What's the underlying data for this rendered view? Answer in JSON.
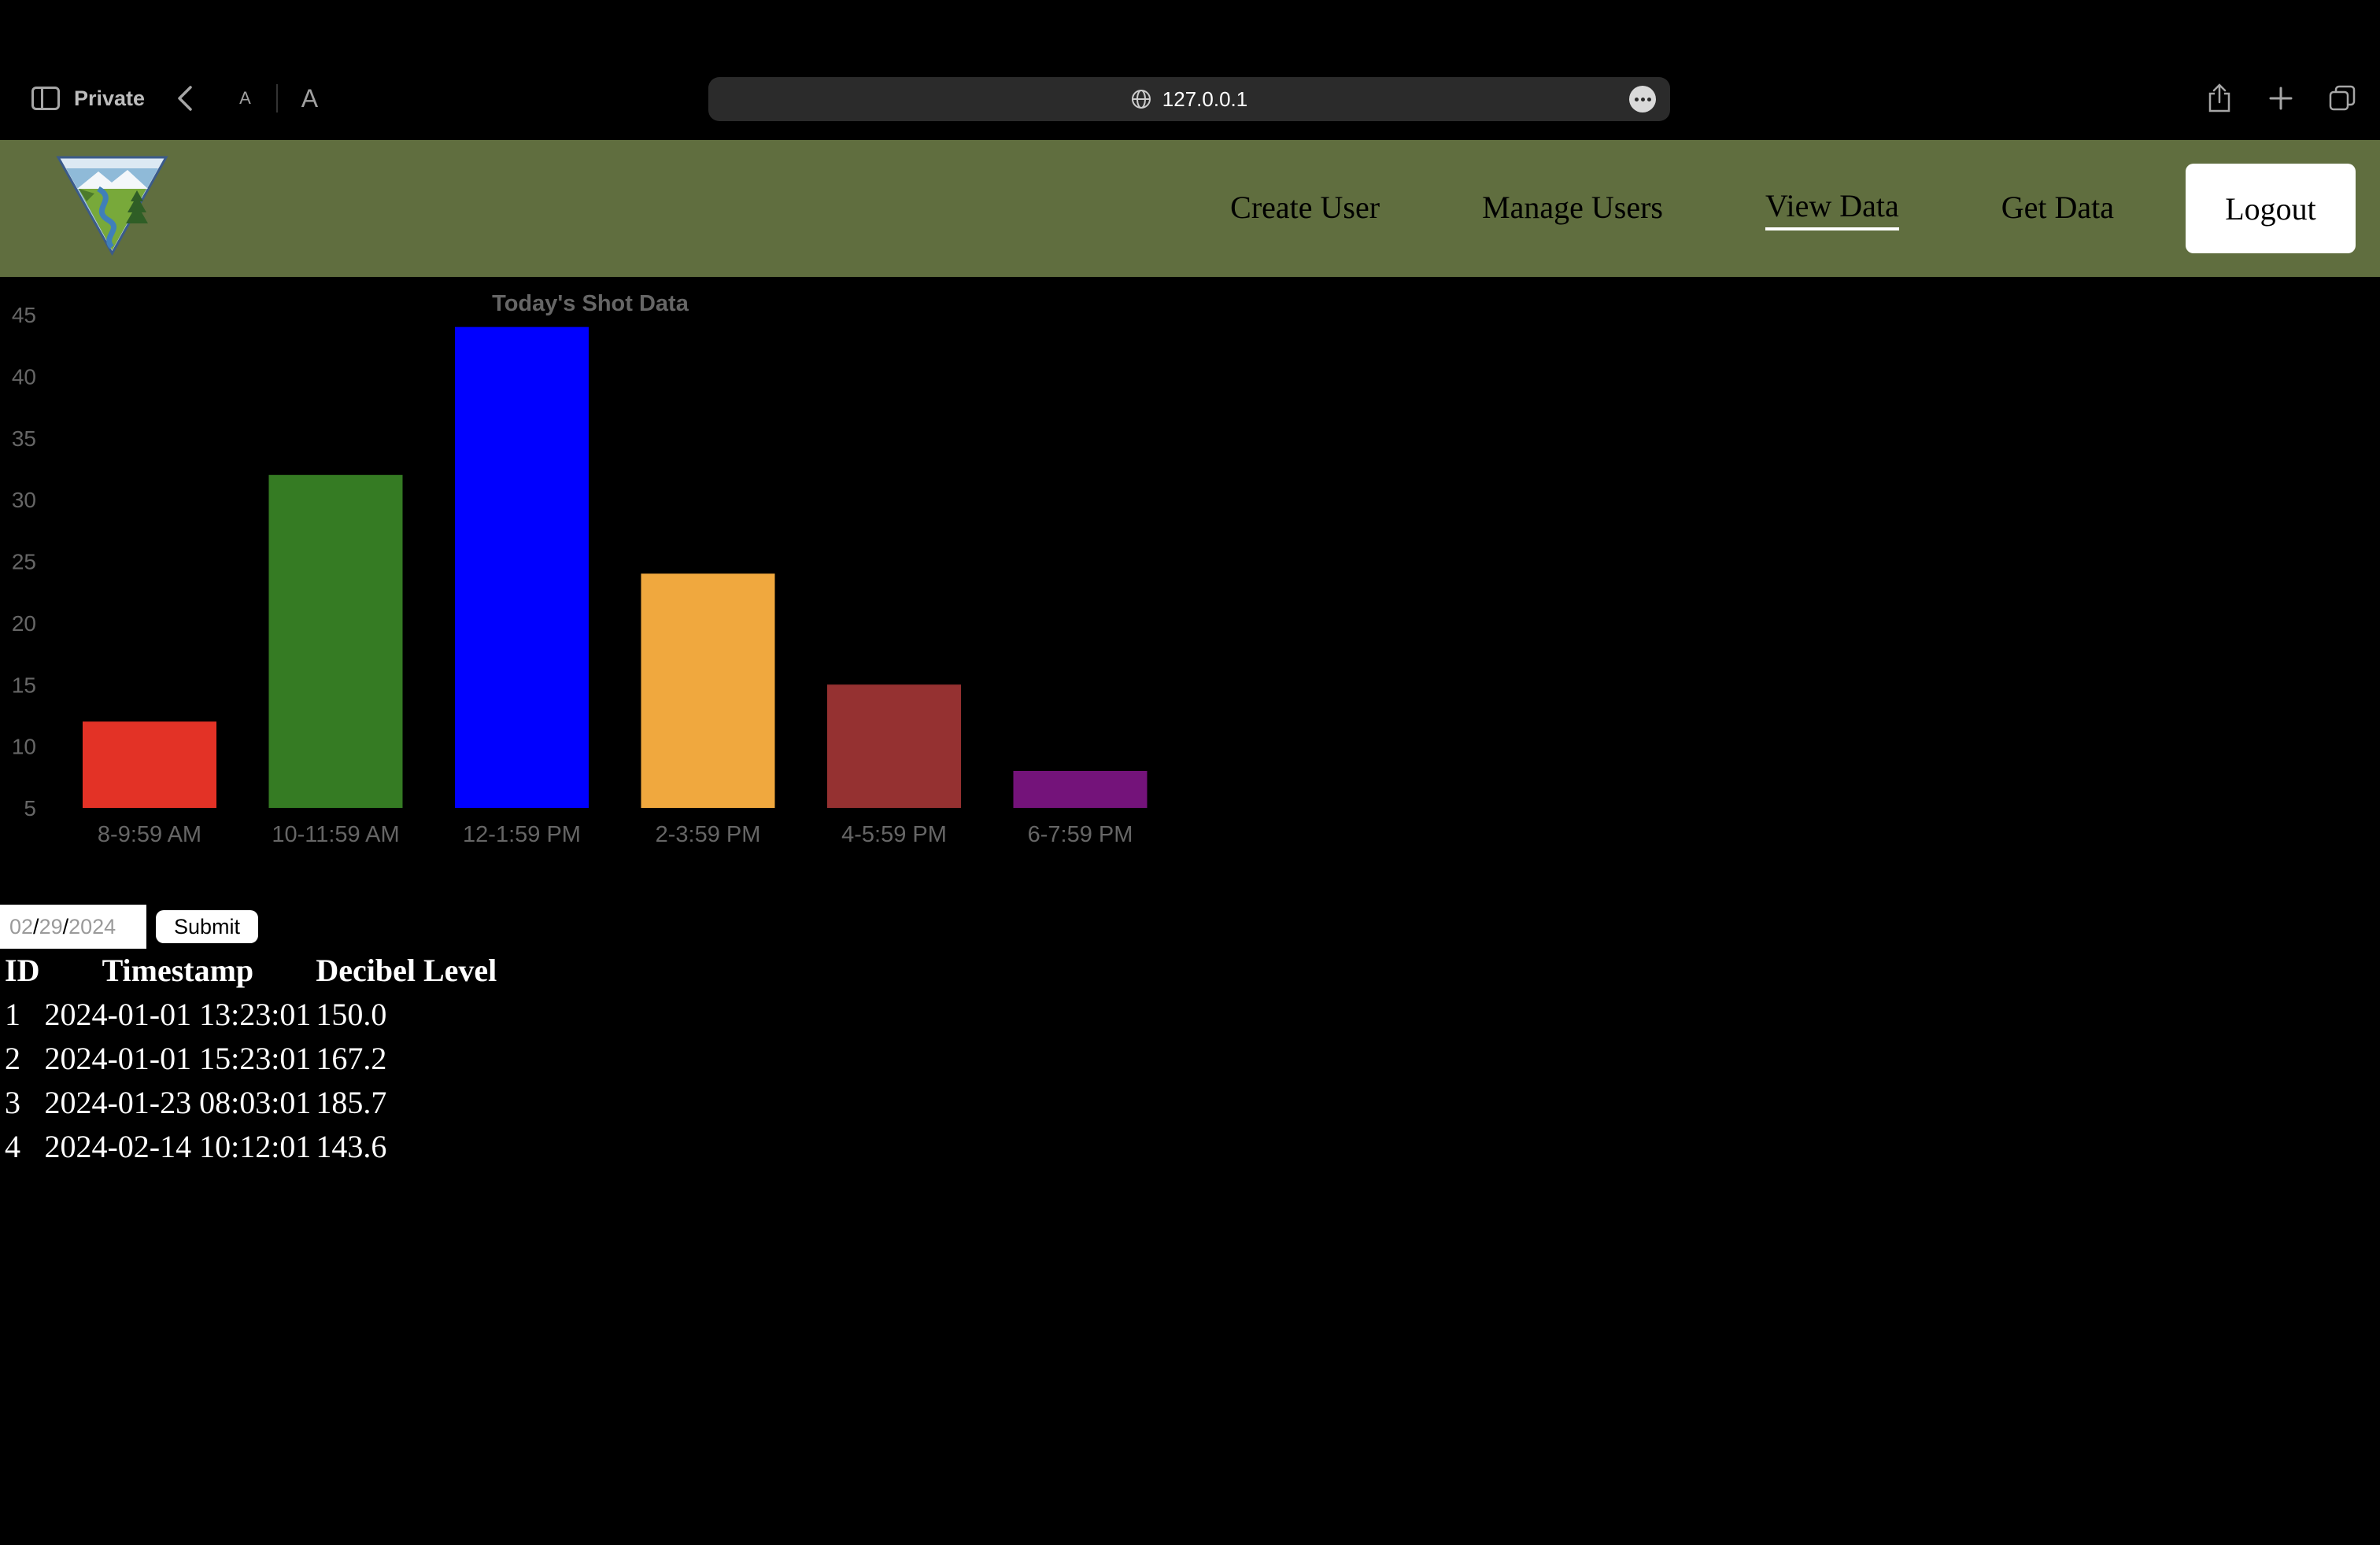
{
  "browser": {
    "mode_label": "Private",
    "text_small": "A",
    "text_large": "A",
    "url": "127.0.0.1"
  },
  "nav": {
    "links": [
      "Create User",
      "Manage Users",
      "View Data",
      "Get Data"
    ],
    "active": "View Data",
    "logout_label": "Logout",
    "logo_icon": "bureau-of-land-management-logo-icon"
  },
  "chart_data": {
    "type": "bar",
    "title": "Today's Shot Data",
    "categories": [
      "8-9:59 AM",
      "10-11:59 AM",
      "12-1:59 PM",
      "2-3:59 PM",
      "4-5:59 PM",
      "6-7:59 PM"
    ],
    "values": [
      12,
      32,
      44,
      24,
      15,
      8
    ],
    "colors": [
      "#e33226",
      "#357b23",
      "#0000ff",
      "#f0a83e",
      "#953131",
      "#74137a"
    ],
    "ylim": [
      5,
      45
    ],
    "yticks": [
      5,
      10,
      15,
      20,
      25,
      30,
      35,
      40,
      45
    ],
    "grid": false,
    "xlabel": "",
    "ylabel": ""
  },
  "form": {
    "date": {
      "month": "02",
      "day": "29",
      "year": "2024",
      "sep": "/"
    },
    "submit_label": "Submit"
  },
  "table": {
    "headers": [
      "ID",
      "Timestamp",
      "Decibel Level"
    ],
    "rows": [
      [
        "1",
        "2024-01-01 13:23:01",
        "150.0"
      ],
      [
        "2",
        "2024-01-01 15:23:01",
        "167.2"
      ],
      [
        "3",
        "2024-01-23 08:03:01",
        "185.7"
      ],
      [
        "4",
        "2024-02-14 10:12:01",
        "143.6"
      ]
    ]
  }
}
